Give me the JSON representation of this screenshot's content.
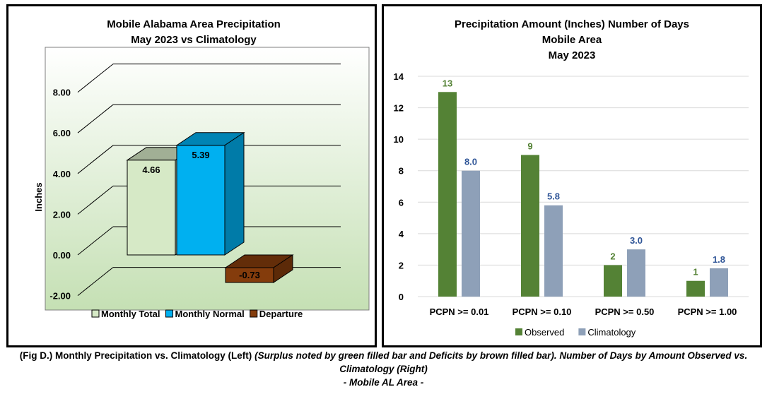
{
  "colors": {
    "monthly_total": "#d6e9c6",
    "monthly_normal": "#00b0f0",
    "departure": "#843c0c",
    "observed": "#548235",
    "climatology": "#8ea0b8",
    "observed_label": "#548235",
    "climatology_label": "#2f5597",
    "plot_bg_top": "#ffffff",
    "plot_bg_bottom": "#c5e0b4"
  },
  "chart_data": [
    {
      "type": "bar",
      "title_lines": [
        "Mobile Alabama Area Precipitation",
        "May 2023 vs Climatology"
      ],
      "ylabel": "Inches",
      "ylim": [
        -2,
        9
      ],
      "yticks": [
        "-2.00",
        "0.00",
        "2.00",
        "4.00",
        "6.00",
        "8.00"
      ],
      "grid": true,
      "three_d": true,
      "series": [
        {
          "name": "Monthly Total",
          "value": 4.66,
          "label": "4.66"
        },
        {
          "name": "Monthly Normal",
          "value": 5.39,
          "label": "5.39"
        },
        {
          "name": "Departure",
          "value": -0.73,
          "label": "-0.73"
        }
      ],
      "legend_position": "bottom"
    },
    {
      "type": "bar",
      "title_lines": [
        "Precipitation Amount (Inches) Number of Days",
        "Mobile Area",
        "May 2023"
      ],
      "categories": [
        "PCPN >= 0.01",
        "PCPN >= 0.10",
        "PCPN >= 0.50",
        "PCPN >= 1.00"
      ],
      "ylim": [
        0,
        14
      ],
      "yticks": [
        "0",
        "2",
        "4",
        "6",
        "8",
        "10",
        "12",
        "14"
      ],
      "grid": true,
      "series": [
        {
          "name": "Observed",
          "values": [
            13,
            9,
            2,
            1
          ],
          "labels": [
            "13",
            "9",
            "2",
            "1"
          ]
        },
        {
          "name": "Climatology",
          "values": [
            8.0,
            5.8,
            3.0,
            1.8
          ],
          "labels": [
            "8.0",
            "5.8",
            "3.0",
            "1.8"
          ]
        }
      ],
      "legend_position": "bottom"
    }
  ],
  "caption": {
    "part1": "(Fig D.) Monthly Precipitation vs. Climatology (Left)",
    "part2": "(Surplus noted by green filled bar and Deficits by brown filled bar). Number of Days by Amount Observed vs. Climatology (Right)",
    "part3": "- Mobile AL Area -"
  }
}
